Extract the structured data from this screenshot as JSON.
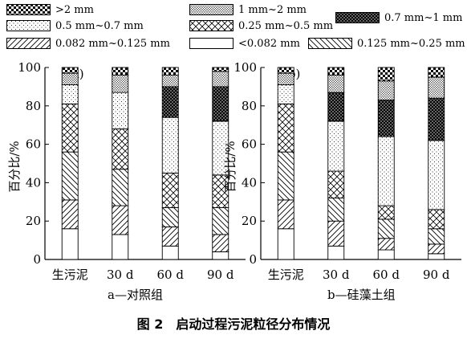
{
  "figure": {
    "caption": "图 2　启动过程污泥粒径分布情况"
  },
  "legend": [
    {
      "label": ">2 mm",
      "pattern": "checker"
    },
    {
      "label": "1 mm~2 mm",
      "pattern": "dots-dense"
    },
    {
      "label": "0.7 mm~1 mm",
      "pattern": "heavy"
    },
    {
      "label": "0.5 mm~0.7 mm",
      "pattern": "dots-sparse"
    },
    {
      "label": "0.25 mm~0.5 mm",
      "pattern": "crosshatch"
    },
    {
      "label": "0.082 mm~0.125 mm",
      "pattern": "diag-fwd"
    },
    {
      "label": "<0.082 mm",
      "pattern": "blank"
    },
    {
      "label": "0.125 mm~0.25 mm",
      "pattern": "diag-back"
    }
  ],
  "chart_data": [
    {
      "type": "bar",
      "stacked": true,
      "panel_tag": "(a)",
      "sublabel": "a—对照组",
      "ylabel": "百分比/%",
      "ylim": [
        0,
        100
      ],
      "yticks": [
        "0",
        "20",
        "40",
        "60",
        "80",
        "100"
      ],
      "categories": [
        "生污泥",
        "30 d",
        "60 d",
        "90 d"
      ],
      "series": [
        {
          "name": "<0.082 mm",
          "pattern": "blank",
          "values": [
            16,
            13,
            7,
            4
          ]
        },
        {
          "name": "0.082 mm~0.125 mm",
          "pattern": "diag-fwd",
          "values": [
            15,
            15,
            10,
            9
          ]
        },
        {
          "name": "0.125 mm~0.25 mm",
          "pattern": "diag-back",
          "values": [
            25,
            19,
            10,
            14
          ]
        },
        {
          "name": "0.25 mm~0.5 mm",
          "pattern": "crosshatch",
          "values": [
            25,
            21,
            18,
            17
          ]
        },
        {
          "name": "0.5 mm~0.7 mm",
          "pattern": "dots-sparse",
          "values": [
            10,
            19,
            29,
            28
          ]
        },
        {
          "name": "0.7 mm~1 mm",
          "pattern": "heavy",
          "values": [
            0,
            0,
            16,
            18
          ]
        },
        {
          "name": "1 mm~2 mm",
          "pattern": "dots-dense",
          "values": [
            6,
            9,
            6,
            8
          ]
        },
        {
          "name": ">2 mm",
          "pattern": "checker",
          "values": [
            3,
            4,
            4,
            2
          ]
        }
      ]
    },
    {
      "type": "bar",
      "stacked": true,
      "panel_tag": "(b)",
      "sublabel": "b—硅藻土组",
      "ylabel": "百分比/%",
      "ylim": [
        0,
        100
      ],
      "yticks": [
        "0",
        "20",
        "40",
        "60",
        "80",
        "100"
      ],
      "categories": [
        "生污泥",
        "30 d",
        "60 d",
        "90 d"
      ],
      "series": [
        {
          "name": "<0.082 mm",
          "pattern": "blank",
          "values": [
            16,
            7,
            5,
            3
          ]
        },
        {
          "name": "0.082 mm~0.125 mm",
          "pattern": "diag-fwd",
          "values": [
            15,
            13,
            6,
            5
          ]
        },
        {
          "name": "0.125 mm~0.25 mm",
          "pattern": "diag-back",
          "values": [
            25,
            12,
            10,
            8
          ]
        },
        {
          "name": "0.25 mm~0.5 mm",
          "pattern": "crosshatch",
          "values": [
            25,
            14,
            7,
            10
          ]
        },
        {
          "name": "0.5 mm~0.7 mm",
          "pattern": "dots-sparse",
          "values": [
            10,
            26,
            36,
            36
          ]
        },
        {
          "name": "0.7 mm~1 mm",
          "pattern": "heavy",
          "values": [
            0,
            15,
            19,
            22
          ]
        },
        {
          "name": "1 mm~2 mm",
          "pattern": "dots-dense",
          "values": [
            6,
            9,
            10,
            11
          ]
        },
        {
          "name": ">2 mm",
          "pattern": "checker",
          "values": [
            3,
            4,
            7,
            5
          ]
        }
      ]
    }
  ]
}
